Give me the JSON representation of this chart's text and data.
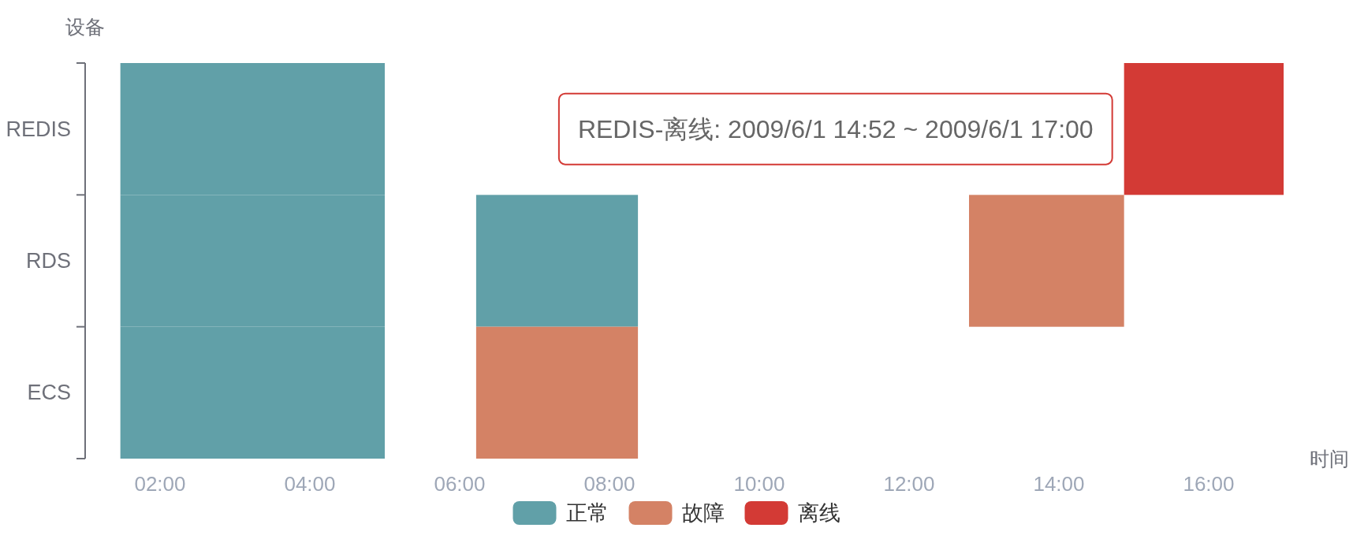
{
  "chart_data": {
    "type": "bar",
    "orientation": "horizontal",
    "xlabel": "时间",
    "ylabel": "设备",
    "categories": [
      "REDIS",
      "RDS",
      "ECS"
    ],
    "xlim": [
      1,
      17
    ],
    "xticks": [
      {
        "value": 2,
        "label": "02:00"
      },
      {
        "value": 4,
        "label": "04:00"
      },
      {
        "value": 6,
        "label": "06:00"
      },
      {
        "value": 8,
        "label": "08:00"
      },
      {
        "value": 10,
        "label": "10:00"
      },
      {
        "value": 12,
        "label": "12:00"
      },
      {
        "value": 14,
        "label": "14:00"
      },
      {
        "value": 16,
        "label": "16:00"
      }
    ],
    "series": [
      {
        "name": "正常",
        "color": "#61a0a8",
        "base": [
          1.47,
          1.47,
          1.47
        ],
        "values": [
          3.53,
          3.53,
          3.53
        ]
      },
      {
        "color": "#61a0a8",
        "base": [
          null,
          6.22,
          null
        ],
        "values": [
          null,
          2.16,
          null
        ]
      },
      {
        "name": "故障",
        "color": "#d48265",
        "base": [
          null,
          12.8,
          6.22
        ],
        "values": [
          null,
          2.07,
          2.16
        ]
      },
      {
        "name": "离线",
        "color": "#d33a35",
        "base": [
          14.87,
          null,
          null
        ],
        "values": [
          2.13,
          null,
          null
        ]
      }
    ],
    "legend": "bottom",
    "annotations": [
      {
        "text": "REDIS-离线: 2009/6/1 14:52 ~ 2009/6/1 17:00",
        "x": 14.87,
        "y": "REDIS"
      }
    ]
  }
}
